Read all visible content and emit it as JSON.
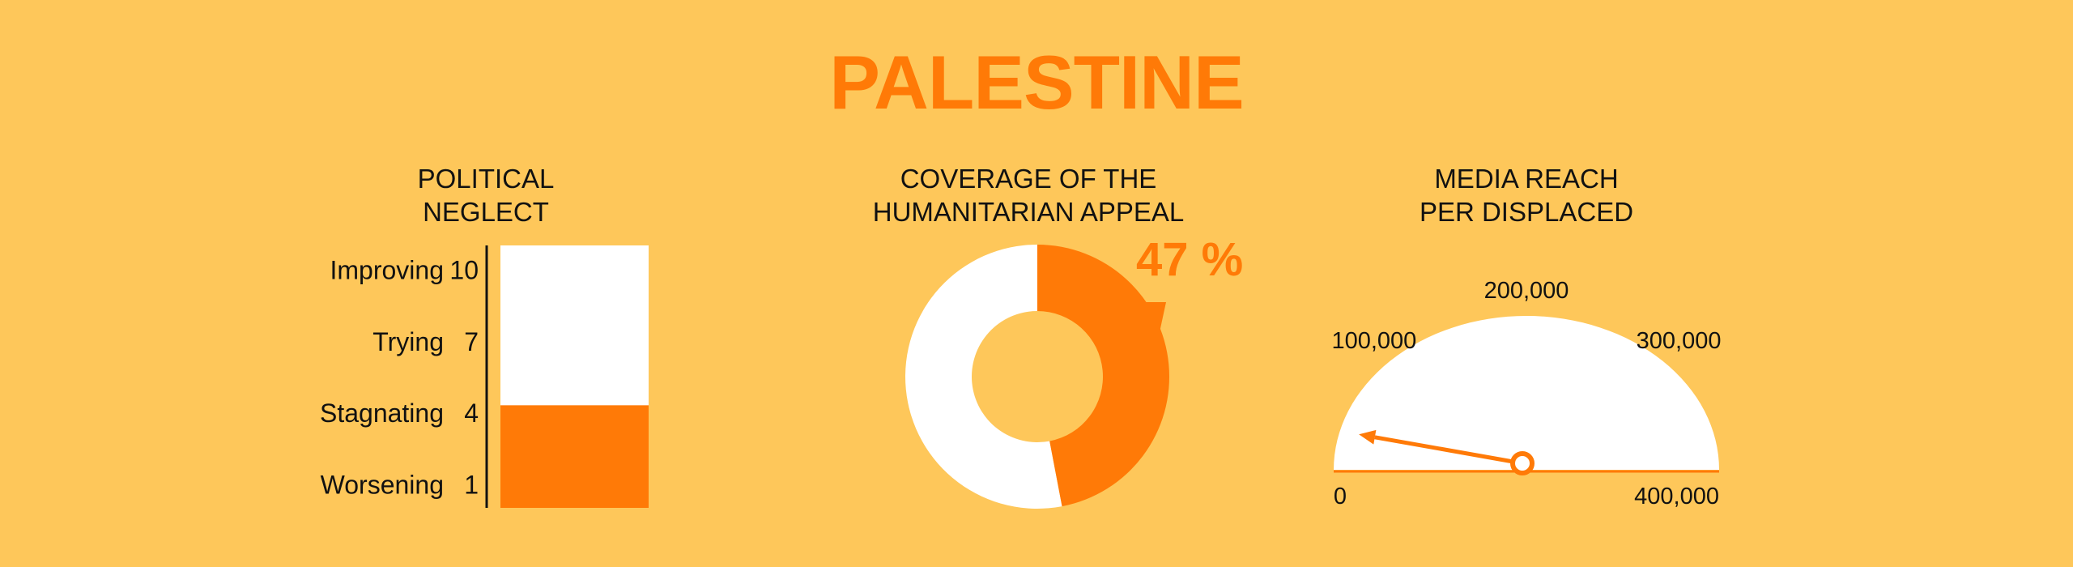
{
  "title": "PALESTINE",
  "colors": {
    "background": "#FEC75A",
    "accent": "#FF7A07",
    "empty": "#FFFFFF",
    "text": "#111111"
  },
  "panels": {
    "neglect": {
      "title_line1": "POLITICAL",
      "title_line2": "NEGLECT"
    },
    "coverage": {
      "title_line1": "COVERAGE OF THE",
      "title_line2": "HUMANITARIAN APPEAL"
    },
    "reach": {
      "title_line1": "MEDIA REACH",
      "title_line2": "PER DISPLACED"
    }
  },
  "chart_data": [
    {
      "type": "bar",
      "title": "POLITICAL NEGLECT",
      "scale_labels": [
        {
          "label": "Improving",
          "value": 10
        },
        {
          "label": "Trying",
          "value": 7
        },
        {
          "label": "Stagnating",
          "value": 4
        },
        {
          "label": "Worsening",
          "value": 1
        }
      ],
      "ylim": [
        0,
        11
      ],
      "value": 4.3
    },
    {
      "type": "pie",
      "title": "COVERAGE OF THE HUMANITARIAN APPEAL",
      "value_percent": 47,
      "label": "47 %"
    },
    {
      "type": "gauge",
      "title": "MEDIA REACH PER DISPLACED",
      "range": [
        0,
        400000
      ],
      "ticks": [
        {
          "value": 0,
          "label": "0"
        },
        {
          "value": 100000,
          "label": "100,000"
        },
        {
          "value": 200000,
          "label": "200,000"
        },
        {
          "value": 300000,
          "label": "300,000"
        },
        {
          "value": 400000,
          "label": "400,000"
        }
      ],
      "value": 7000
    }
  ]
}
